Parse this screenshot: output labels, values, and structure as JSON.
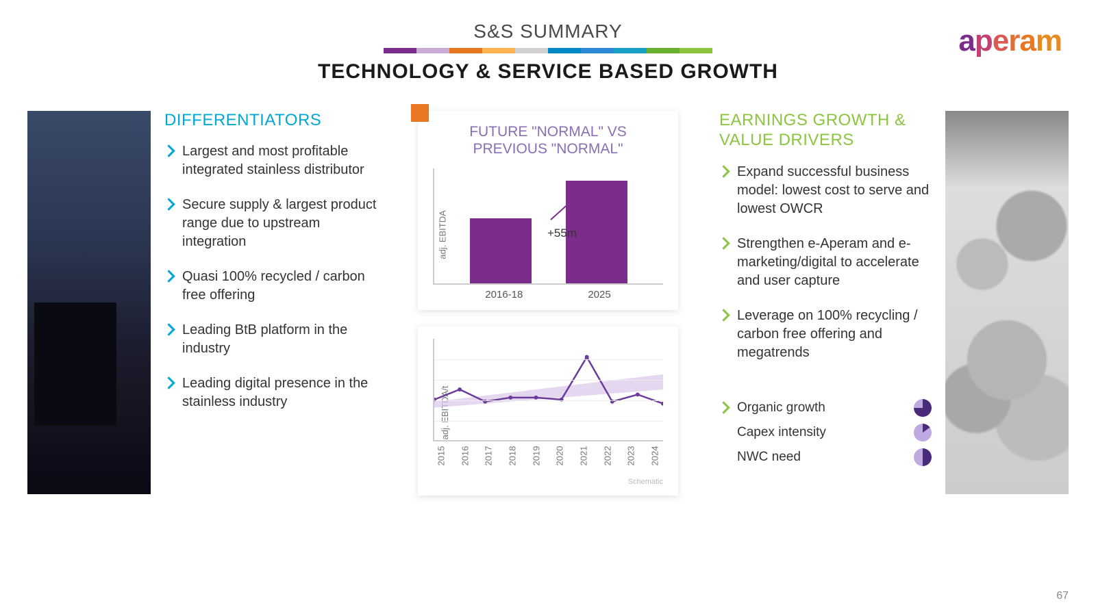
{
  "header": {
    "supertitle": "S&S SUMMARY",
    "title": "TECHNOLOGY & SERVICE BASED GROWTH",
    "colorbar": [
      "#7c2c8a",
      "#c9a9d6",
      "#e87722",
      "#ffb350",
      "#d0d0d0",
      "#0088c6",
      "#2a88d6",
      "#18a0c6",
      "#68b030",
      "#8bc53f"
    ]
  },
  "logo": {
    "text": "aperam",
    "colors": {
      "a1": "#7c2c8a",
      "a2": "#a83a8a",
      "p": "#c44072",
      "e": "#d85a52",
      "r": "#e27036",
      "a3": "#e87722",
      "m": "#e88a1e"
    }
  },
  "differentiators": {
    "title": "DIFFERENTIATORS",
    "title_color": "#00a8d6",
    "bullet_color": "#00a8d6",
    "items": [
      "Largest and most profitable integrated stainless distributor",
      "Secure supply & largest product range due to upstream integration",
      "Quasi 100% recycled / carbon free offering",
      "Leading BtB platform in the industry",
      "Leading digital presence in the stainless industry"
    ]
  },
  "earnings": {
    "title": "EARNINGS GROWTH & VALUE DRIVERS",
    "title_color": "#8bc53f",
    "bullet_color": "#8bc53f",
    "items": [
      "Expand successful business model: lowest cost to serve and lowest OWCR",
      "Strengthen e-Aperam and e-marketing/digital to accelerate and user capture",
      "Leverage on 100% recycling / carbon free offering and megatrends"
    ],
    "metrics": [
      {
        "label": "Organic growth",
        "pct": 75,
        "c1": "#4a2a7a",
        "c2": "#c0a8e0"
      },
      {
        "label": "Capex intensity",
        "pct": 15,
        "c1": "#4a2a7a",
        "c2": "#c0a8e0"
      },
      {
        "label": "NWC need",
        "pct": 50,
        "c1": "#4a2a7a",
        "c2": "#c0a8e0"
      }
    ]
  },
  "bar_chart": {
    "title_line1": "FUTURE \"NORMAL\" VS",
    "title_line2": "PREVIOUS \"NORMAL\"",
    "y_label": "adj. EBITDA",
    "delta": "+55m",
    "bar_color": "#7c2c8a",
    "arrow_color": "#7c2c8a",
    "bars": [
      {
        "label": "2016-18",
        "value": 95
      },
      {
        "label": "2025",
        "value": 150
      }
    ],
    "max": 160
  },
  "line_chart": {
    "y_label": "adj. EBITDA/t",
    "line_color": "#6c3a9a",
    "band_color": "#d8c8ea",
    "x_labels": [
      "2015",
      "2016",
      "2017",
      "2018",
      "2019",
      "2020",
      "2021",
      "2022",
      "2023",
      "2024"
    ],
    "points": [
      40,
      50,
      38,
      42,
      42,
      40,
      82,
      38,
      45,
      36
    ],
    "band_lower": [
      32,
      34,
      36,
      38,
      40,
      42,
      44,
      46,
      48,
      50
    ],
    "band_upper": [
      38,
      41,
      44,
      47,
      50,
      53,
      56,
      59,
      62,
      65
    ],
    "max": 100,
    "schematic_label": "Schematic"
  },
  "page_number": "67"
}
